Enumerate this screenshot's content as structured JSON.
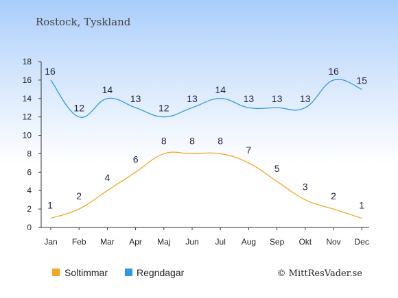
{
  "chart_data": {
    "type": "line",
    "title": "Rostock, Tyskland",
    "categories": [
      "Jan",
      "Feb",
      "Mar",
      "Apr",
      "Maj",
      "Jun",
      "Jul",
      "Aug",
      "Sep",
      "Okt",
      "Nov",
      "Dec"
    ],
    "series": [
      {
        "name": "Soltimmar",
        "values": [
          1,
          2,
          4,
          6,
          8,
          8,
          8,
          7,
          5,
          3,
          2,
          1
        ],
        "color": "#f5a623"
      },
      {
        "name": "Regndagar",
        "values": [
          16,
          12,
          14,
          13,
          12,
          13,
          14,
          13,
          13,
          13,
          16,
          15
        ],
        "color": "#2f97e8"
      }
    ],
    "xlabel": "",
    "ylabel": "",
    "ylim": [
      0,
      18
    ],
    "yticks": [
      0,
      2,
      4,
      6,
      8,
      10,
      12,
      14,
      16,
      18
    ],
    "grid": false,
    "legend_position": "bottom-left"
  },
  "credit": "© MittResVader.se"
}
